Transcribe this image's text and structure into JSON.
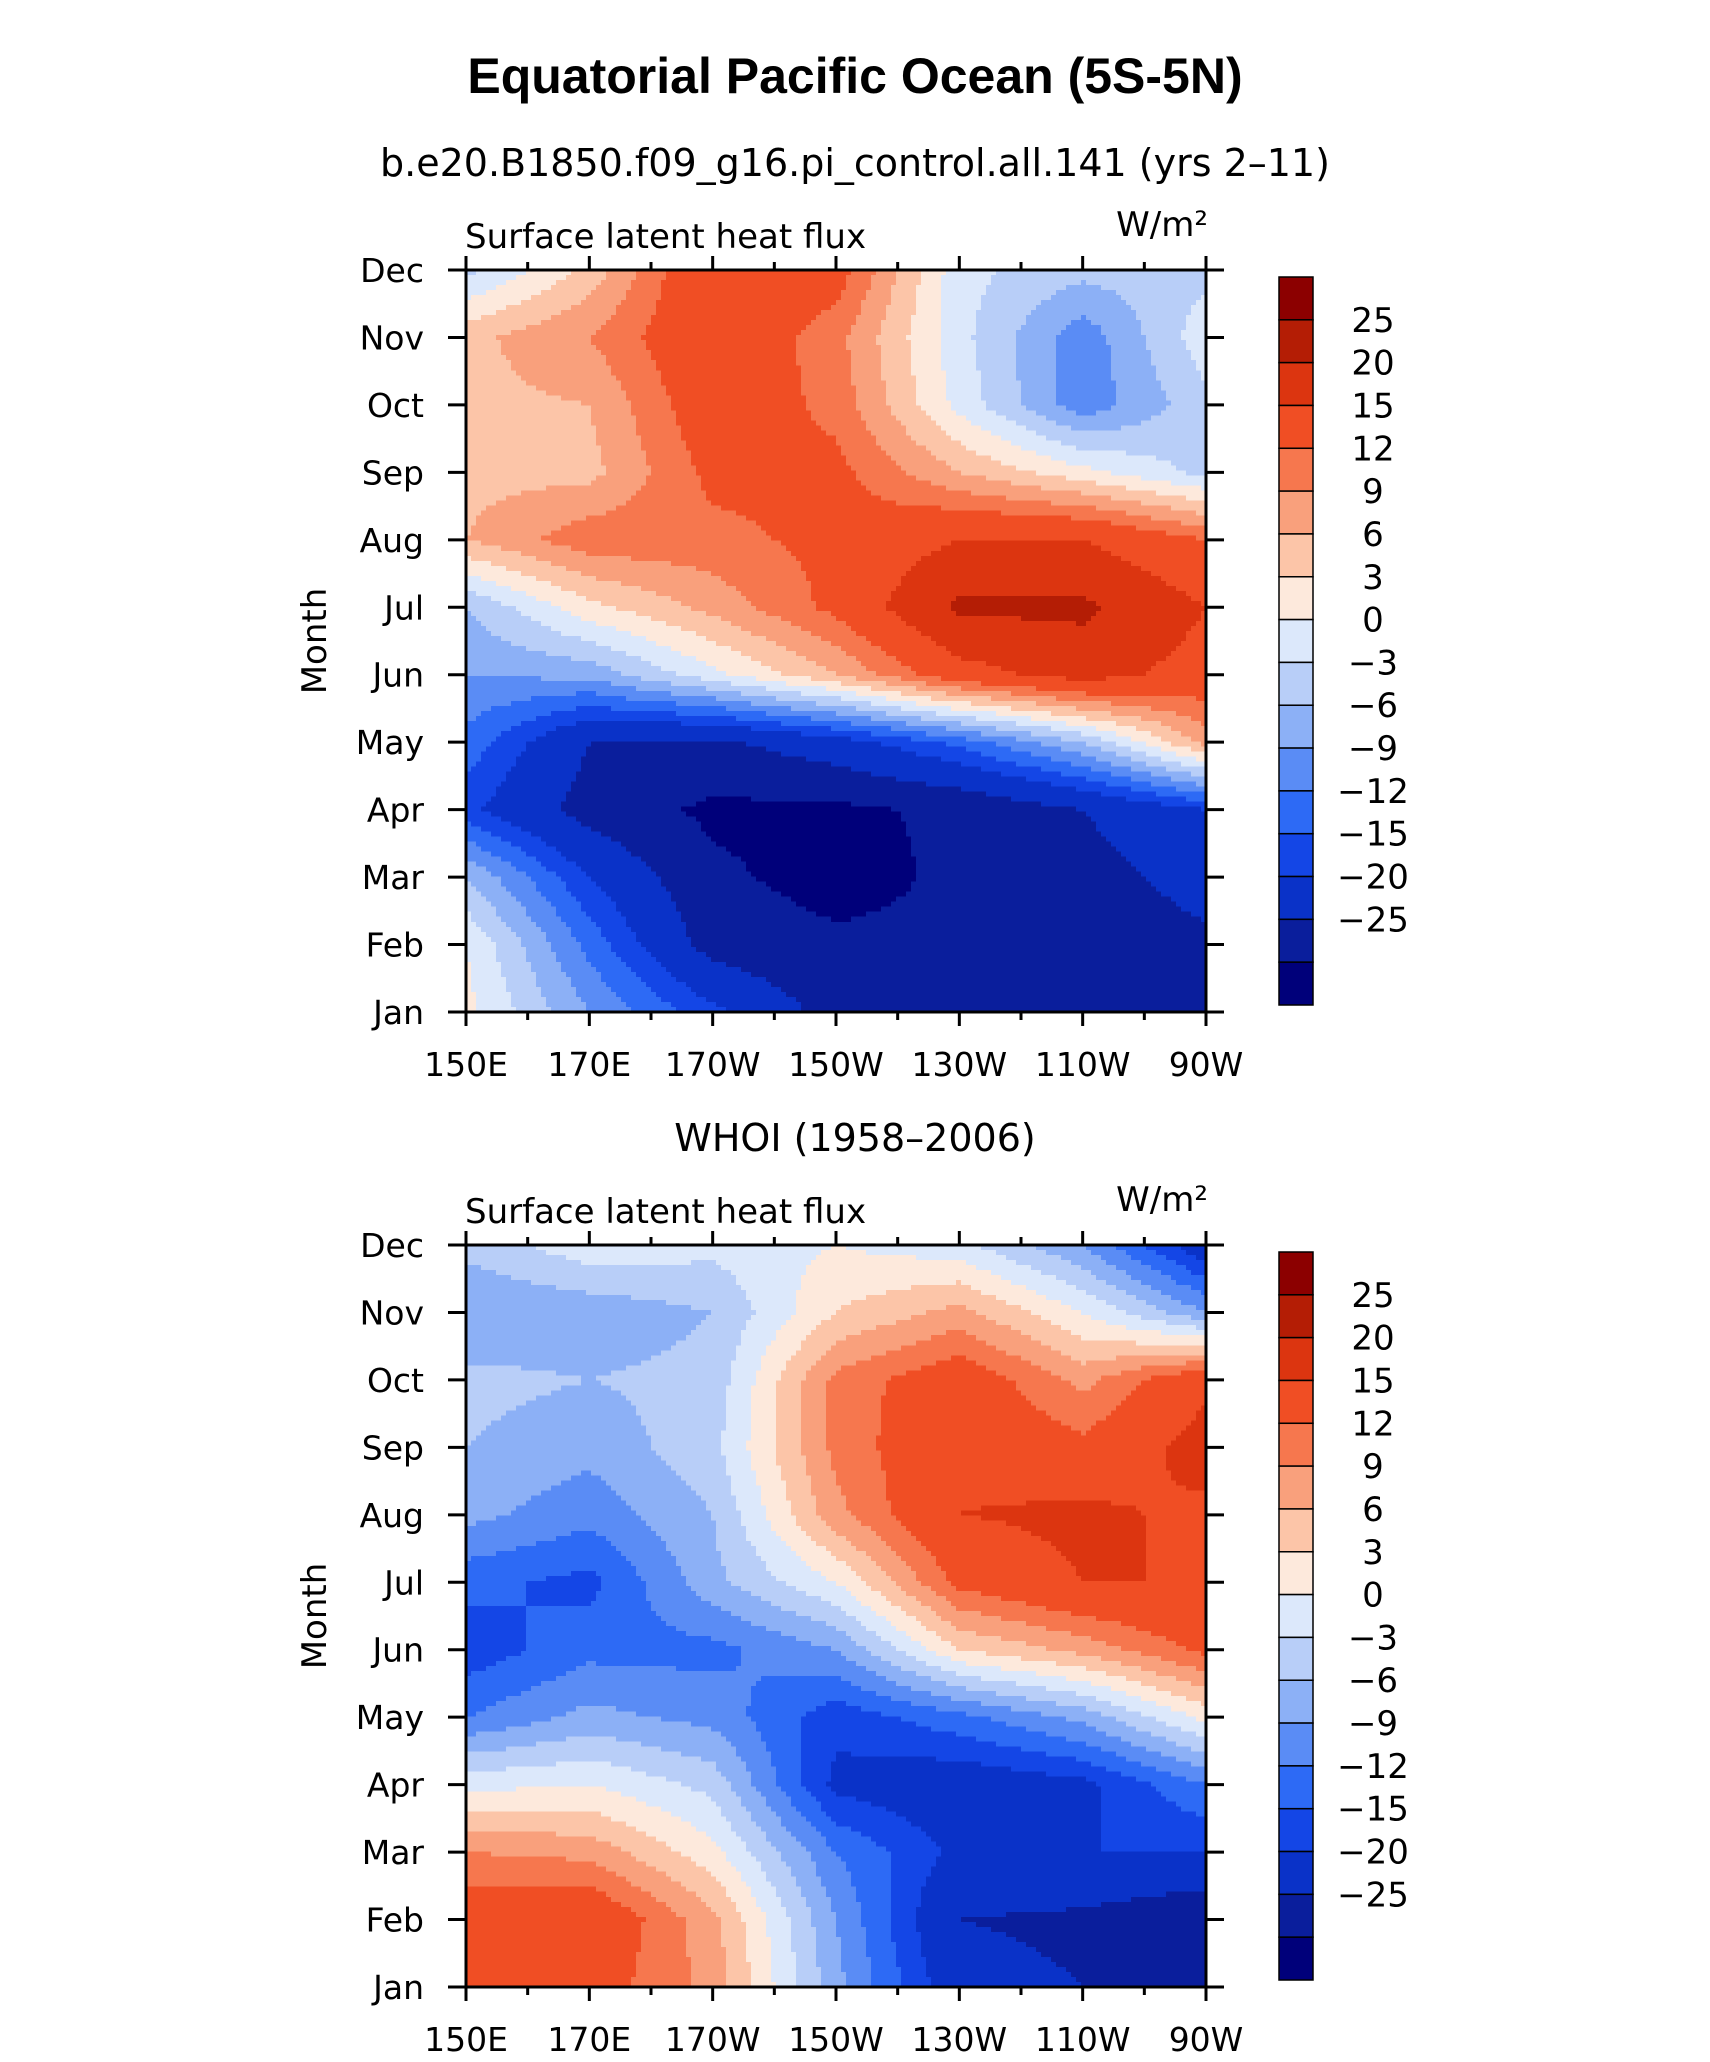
{
  "figure": {
    "title": "Equatorial Pacific Ocean (5S-5N)",
    "label": {
      "name": "Surface latent heat flux",
      "units": "W/m²"
    },
    "ylabel": "Month"
  },
  "axes": {
    "x_ticks": [
      "150E",
      "170E",
      "170W",
      "150W",
      "130W",
      "110W",
      "90W"
    ],
    "x_values_deg_east": [
      150,
      170,
      190,
      210,
      230,
      250,
      270
    ],
    "y_ticks": [
      "Jan",
      "Feb",
      "Mar",
      "Apr",
      "May",
      "Jun",
      "Jul",
      "Aug",
      "Sep",
      "Oct",
      "Nov",
      "Dec"
    ],
    "xlim": [
      150,
      270
    ],
    "ylim": [
      1,
      12
    ]
  },
  "colorbar": {
    "labels": [
      "25",
      "20",
      "15",
      "12",
      "9",
      "6",
      "3",
      "0",
      "−3",
      "−6",
      "−9",
      "−12",
      "−15",
      "−20",
      "−25"
    ],
    "levels": [
      -25,
      -20,
      -15,
      -12,
      -9,
      -6,
      -3,
      0,
      3,
      6,
      9,
      12,
      15,
      20,
      25
    ],
    "colors": [
      "#00007a",
      "#0a1e9c",
      "#0a32c8",
      "#1446e6",
      "#2d6af5",
      "#5a8cf5",
      "#8cb0f6",
      "#b8cef8",
      "#dce8fb",
      "#fde9dc",
      "#fcc5a8",
      "#f9a07c",
      "#f6774e",
      "#f04e24",
      "#dc3510",
      "#b41d05",
      "#8c0000"
    ]
  },
  "chart_data": [
    {
      "type": "heatmap",
      "subtitle": "b.e20.B1850.f09_g16.pi_control.all.141 (yrs 2–11)",
      "xlabel": "",
      "ylabel": "Month",
      "units": "W/m²",
      "x": [
        150,
        170,
        190,
        210,
        230,
        250,
        270
      ],
      "y": [
        "Jan",
        "Feb",
        "Mar",
        "Apr",
        "May",
        "Jun",
        "Jul",
        "Aug",
        "Sep",
        "Oct",
        "Nov",
        "Dec"
      ],
      "z": [
        [
          4,
          -6,
          -14,
          -22,
          -22,
          -22,
          -21
        ],
        [
          3,
          -10,
          -22,
          -24,
          -24,
          -23,
          -21
        ],
        [
          -3,
          -15,
          -24,
          -27,
          -24,
          -22,
          -18
        ],
        [
          -14,
          -22,
          -26,
          -26,
          -24,
          -20,
          -15
        ],
        [
          -10,
          -20,
          -21,
          -17,
          -11,
          -3,
          10
        ],
        [
          -6,
          -5,
          2,
          9,
          18,
          22,
          18
        ],
        [
          -3,
          5,
          10,
          16,
          26,
          26,
          20
        ],
        [
          9,
          14,
          14,
          16,
          20,
          20,
          15
        ],
        [
          8,
          8,
          16,
          16,
          9,
          4,
          -1
        ],
        [
          8,
          9,
          18,
          14,
          2,
          -8,
          -1
        ],
        [
          8,
          12,
          19,
          13,
          1,
          -8,
          2
        ],
        [
          -1,
          7,
          20,
          17,
          1,
          -2,
          -1
        ]
      ]
    },
    {
      "type": "heatmap",
      "subtitle": "WHOI (1958–2006)",
      "xlabel": "",
      "ylabel": "Month",
      "units": "W/m²",
      "x": [
        150,
        170,
        190,
        210,
        230,
        250,
        270
      ],
      "y": [
        "Jan",
        "Feb",
        "Mar",
        "Apr",
        "May",
        "Jun",
        "Jul",
        "Aug",
        "Sep",
        "Oct",
        "Nov",
        "Dec"
      ],
      "z": [
        [
          18,
          17,
          11,
          -5,
          -18,
          -20,
          -24
        ],
        [
          18,
          19,
          10,
          -6,
          -20,
          -21,
          -24
        ],
        [
          12,
          11,
          4,
          -9,
          -16,
          -15,
          -15
        ],
        [
          2,
          3,
          -1,
          -16,
          -18,
          -16,
          -9
        ],
        [
          -9,
          -5,
          -7,
          -14,
          -10,
          -5,
          4
        ],
        [
          -14,
          -10,
          -10,
          -6,
          6,
          10,
          16
        ],
        [
          -11,
          -13,
          -4,
          3,
          16,
          20,
          20
        ],
        [
          -5,
          -8,
          -3,
          11,
          20,
          21,
          19
        ],
        [
          -3,
          -5,
          -1,
          13,
          19,
          16,
          22
        ],
        [
          -2,
          -3,
          -2,
          13,
          18,
          11,
          19
        ],
        [
          -6,
          -5,
          -3,
          6,
          10,
          3,
          -6
        ],
        [
          -2,
          2,
          1,
          3,
          1,
          -6,
          -18
        ]
      ]
    }
  ]
}
